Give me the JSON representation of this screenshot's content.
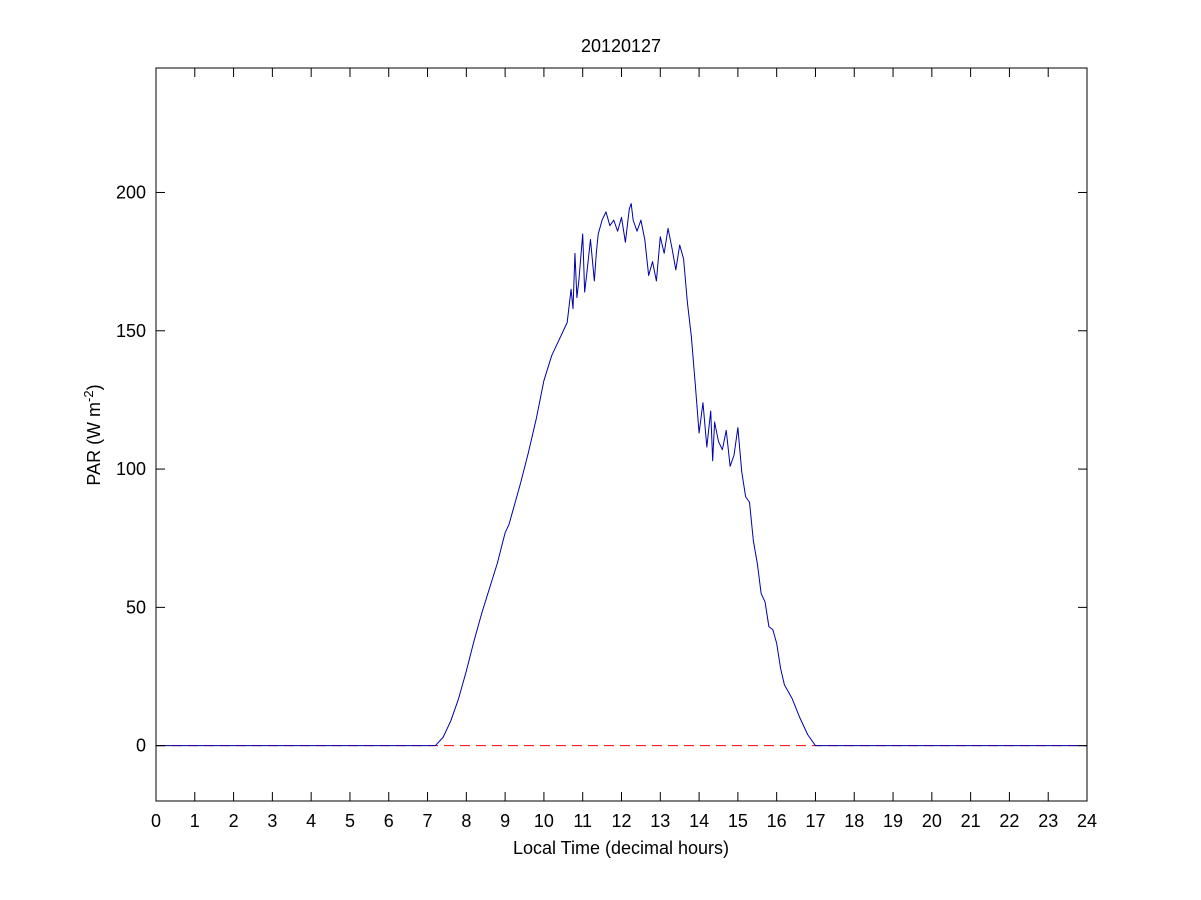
{
  "chart_data": {
    "type": "line",
    "title": "20120127",
    "xlabel": "Local Time (decimal hours)",
    "ylabel": {
      "text": "PAR (W m",
      "superscript": "-2",
      "suffix": ")"
    },
    "xlim": [
      0,
      24
    ],
    "ylim": [
      -20,
      245
    ],
    "x_ticks": [
      0,
      1,
      2,
      3,
      4,
      5,
      6,
      7,
      8,
      9,
      10,
      11,
      12,
      13,
      14,
      15,
      16,
      17,
      18,
      19,
      20,
      21,
      22,
      23,
      24
    ],
    "y_ticks": [
      0,
      50,
      100,
      150,
      200
    ],
    "grid": false,
    "colors": {
      "series": "#0000aa",
      "zero_line": "#ff0000",
      "axes": "#000000",
      "background": "#ffffff"
    },
    "zero_line": {
      "y": 0,
      "style": "dashed"
    },
    "series": [
      {
        "x": [
          0,
          7.2,
          7.4,
          7.6,
          7.8,
          8.0,
          8.2,
          8.4,
          8.6,
          8.8,
          9.0,
          9.1,
          9.2,
          9.4,
          9.6,
          9.8,
          10.0,
          10.2,
          10.4,
          10.5,
          10.6,
          10.7,
          10.75,
          10.8,
          10.85,
          10.9,
          11.0,
          11.05,
          11.1,
          11.2,
          11.3,
          11.35,
          11.4,
          11.5,
          11.6,
          11.7,
          11.8,
          11.9,
          12.0,
          12.1,
          12.2,
          12.25,
          12.3,
          12.4,
          12.5,
          12.6,
          12.7,
          12.8,
          12.9,
          13.0,
          13.1,
          13.2,
          13.3,
          13.4,
          13.5,
          13.6,
          13.7,
          13.8,
          13.9,
          14.0,
          14.1,
          14.2,
          14.3,
          14.35,
          14.4,
          14.5,
          14.6,
          14.7,
          14.8,
          14.9,
          15.0,
          15.1,
          15.2,
          15.3,
          15.4,
          15.5,
          15.6,
          15.7,
          15.8,
          15.9,
          16.0,
          16.1,
          16.2,
          16.4,
          16.6,
          16.8,
          17.0,
          17.2,
          17.4,
          17.6,
          24
        ],
        "y": [
          0,
          0,
          3,
          9,
          17,
          27,
          38,
          48,
          57,
          66,
          77,
          80,
          85,
          95,
          106,
          118,
          132,
          141,
          147,
          150,
          153,
          165,
          158,
          178,
          162,
          168,
          185,
          164,
          170,
          183,
          168,
          178,
          185,
          190,
          193,
          188,
          190,
          186,
          191,
          182,
          194,
          196,
          190,
          186,
          190,
          183,
          170,
          175,
          168,
          184,
          178,
          187,
          180,
          172,
          181,
          176,
          160,
          148,
          131,
          113,
          124,
          108,
          121,
          103,
          117,
          110,
          107,
          114,
          101,
          105,
          115,
          99,
          90,
          88,
          74,
          66,
          55,
          52,
          43,
          42,
          37,
          28,
          22,
          17,
          10,
          4,
          0,
          0,
          0,
          0,
          0
        ]
      }
    ]
  }
}
